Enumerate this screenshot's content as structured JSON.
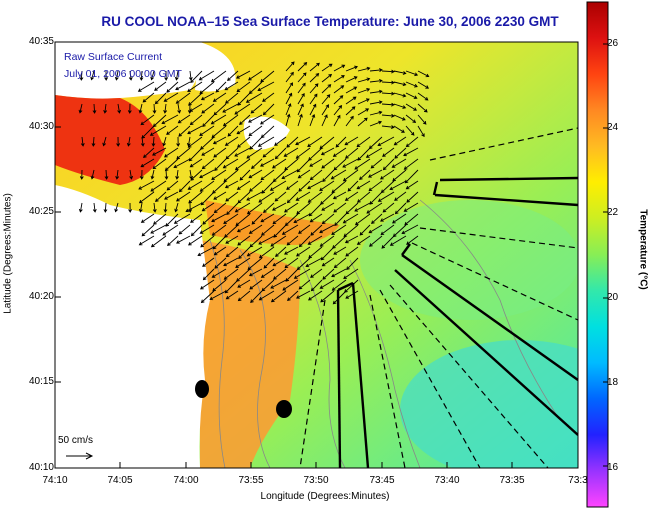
{
  "title": "RU COOL  NOAA–15  Sea Surface Temperature:  June 30, 2006 2230 GMT",
  "legend": {
    "line1": "Raw Surface Current",
    "line2": "July 01, 2006 00:00 GMT"
  },
  "scale_label": "50 cm/s",
  "colorbar": {
    "label": "Temperature (°C)",
    "ticks": [
      "16",
      "18",
      "20",
      "22",
      "24",
      "26"
    ],
    "min": 15,
    "max": 27,
    "colors": [
      "#ff44ff",
      "#9933ff",
      "#2222ff",
      "#0066ff",
      "#00bbff",
      "#00e0e0",
      "#33e8aa",
      "#88ee55",
      "#ccee22",
      "#ffee00",
      "#ffbb22",
      "#ff8822",
      "#ff4411",
      "#dd1111",
      "#aa0000"
    ]
  },
  "chart_data": {
    "type": "map",
    "xlabel": "Longitude (Degrees:Minutes)",
    "ylabel": "Latitude (Degrees:Minutes)",
    "x_ticks": [
      "74:10",
      "74:05",
      "74:00",
      "73:55",
      "73:50",
      "73:45",
      "73:40",
      "73:35",
      "73:3"
    ],
    "y_ticks": [
      "40:35",
      "40:30",
      "40:25",
      "40:20",
      "40:15",
      "40:10"
    ],
    "xlim": [
      "74:10",
      "73:30"
    ],
    "ylim": [
      "40:10",
      "40:35"
    ],
    "grid": false
  }
}
